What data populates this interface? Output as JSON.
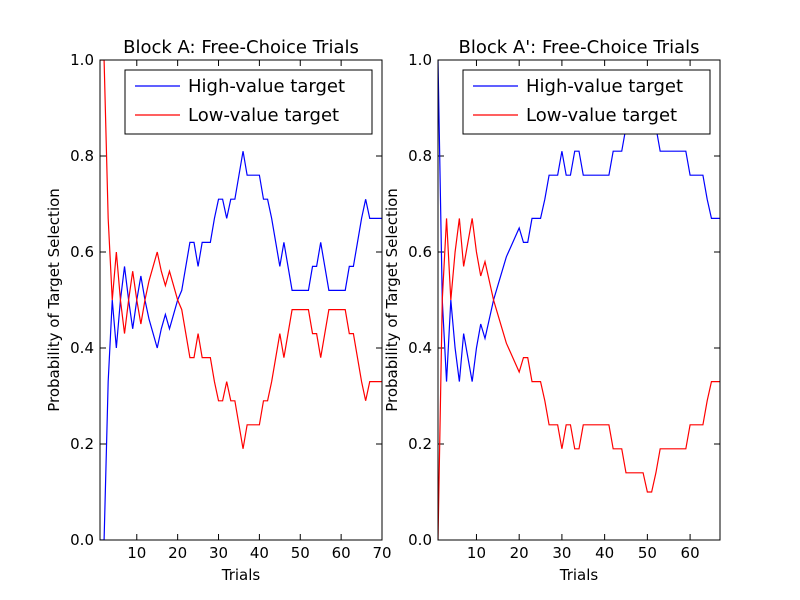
{
  "chart_data": [
    {
      "type": "line",
      "title": "Block A: Free-Choice Trials",
      "xlabel": "Trials",
      "ylabel": "Probability of Target Selection",
      "xlim": [
        1,
        70
      ],
      "ylim": [
        0.0,
        1.0
      ],
      "xticks": [
        10,
        20,
        30,
        40,
        50,
        60,
        70
      ],
      "yticks": [
        0.0,
        0.2,
        0.4,
        0.6,
        0.8,
        1.0
      ],
      "legend_position": "top-right",
      "series": [
        {
          "name": "High-value target",
          "color": "#0000ff",
          "x": [
            1,
            2,
            3,
            4,
            5,
            6,
            7,
            8,
            9,
            10,
            11,
            12,
            13,
            14,
            15,
            16,
            17,
            18,
            19,
            20,
            21,
            22,
            23,
            24,
            25,
            26,
            27,
            28,
            29,
            30,
            31,
            32,
            33,
            34,
            35,
            36,
            37,
            38,
            39,
            40,
            41,
            42,
            43,
            44,
            45,
            46,
            47,
            48,
            49,
            50,
            51,
            52,
            53,
            54,
            55,
            56,
            57,
            58,
            59,
            60,
            61,
            62,
            63,
            64,
            65,
            66,
            67,
            68,
            69,
            70
          ],
          "y": [
            0.0,
            0.0,
            0.33,
            0.5,
            0.4,
            0.5,
            0.57,
            0.5,
            0.44,
            0.5,
            0.55,
            0.5,
            0.46,
            0.43,
            0.4,
            0.44,
            0.47,
            0.44,
            0.47,
            0.5,
            0.52,
            0.57,
            0.62,
            0.62,
            0.57,
            0.62,
            0.62,
            0.62,
            0.67,
            0.71,
            0.71,
            0.67,
            0.71,
            0.71,
            0.76,
            0.81,
            0.76,
            0.76,
            0.76,
            0.76,
            0.71,
            0.71,
            0.67,
            0.62,
            0.57,
            0.62,
            0.57,
            0.52,
            0.52,
            0.52,
            0.52,
            0.52,
            0.57,
            0.57,
            0.62,
            0.57,
            0.52,
            0.52,
            0.52,
            0.52,
            0.52,
            0.57,
            0.57,
            0.62,
            0.67,
            0.71,
            0.67,
            0.67,
            0.67,
            0.67
          ]
        },
        {
          "name": "Low-value target",
          "color": "#ff0000",
          "x": [
            1,
            2,
            3,
            4,
            5,
            6,
            7,
            8,
            9,
            10,
            11,
            12,
            13,
            14,
            15,
            16,
            17,
            18,
            19,
            20,
            21,
            22,
            23,
            24,
            25,
            26,
            27,
            28,
            29,
            30,
            31,
            32,
            33,
            34,
            35,
            36,
            37,
            38,
            39,
            40,
            41,
            42,
            43,
            44,
            45,
            46,
            47,
            48,
            49,
            50,
            51,
            52,
            53,
            54,
            55,
            56,
            57,
            58,
            59,
            60,
            61,
            62,
            63,
            64,
            65,
            66,
            67,
            68,
            69,
            70
          ],
          "y": [
            1.0,
            1.0,
            0.67,
            0.5,
            0.6,
            0.5,
            0.43,
            0.5,
            0.56,
            0.5,
            0.45,
            0.5,
            0.54,
            0.57,
            0.6,
            0.56,
            0.53,
            0.56,
            0.53,
            0.5,
            0.48,
            0.43,
            0.38,
            0.38,
            0.43,
            0.38,
            0.38,
            0.38,
            0.33,
            0.29,
            0.29,
            0.33,
            0.29,
            0.29,
            0.24,
            0.19,
            0.24,
            0.24,
            0.24,
            0.24,
            0.29,
            0.29,
            0.33,
            0.38,
            0.43,
            0.38,
            0.43,
            0.48,
            0.48,
            0.48,
            0.48,
            0.48,
            0.43,
            0.43,
            0.38,
            0.43,
            0.48,
            0.48,
            0.48,
            0.48,
            0.48,
            0.43,
            0.43,
            0.38,
            0.33,
            0.29,
            0.33,
            0.33,
            0.33,
            0.33
          ]
        }
      ]
    },
    {
      "type": "line",
      "title": "Block A': Free-Choice Trials",
      "xlabel": "Trials",
      "ylabel": "Probability of Target Selection",
      "xlim": [
        1,
        67
      ],
      "ylim": [
        0.0,
        1.0
      ],
      "xticks": [
        10,
        20,
        30,
        40,
        50,
        60
      ],
      "yticks": [
        0.0,
        0.2,
        0.4,
        0.6,
        0.8,
        1.0
      ],
      "legend_position": "top-right",
      "series": [
        {
          "name": "High-value target",
          "color": "#0000ff",
          "x": [
            1,
            2,
            3,
            4,
            5,
            6,
            7,
            8,
            9,
            10,
            11,
            12,
            13,
            14,
            15,
            16,
            17,
            18,
            19,
            20,
            21,
            22,
            23,
            24,
            25,
            26,
            27,
            28,
            29,
            30,
            31,
            32,
            33,
            34,
            35,
            36,
            37,
            38,
            39,
            40,
            41,
            42,
            43,
            44,
            45,
            46,
            47,
            48,
            49,
            50,
            51,
            52,
            53,
            54,
            55,
            56,
            57,
            58,
            59,
            60,
            61,
            62,
            63,
            64,
            65,
            66,
            67
          ],
          "y": [
            1.0,
            0.5,
            0.33,
            0.5,
            0.4,
            0.33,
            0.43,
            0.38,
            0.33,
            0.4,
            0.45,
            0.42,
            0.46,
            0.5,
            0.53,
            0.56,
            0.59,
            0.61,
            0.63,
            0.65,
            0.62,
            0.62,
            0.67,
            0.67,
            0.67,
            0.71,
            0.76,
            0.76,
            0.76,
            0.81,
            0.76,
            0.76,
            0.81,
            0.81,
            0.76,
            0.76,
            0.76,
            0.76,
            0.76,
            0.76,
            0.76,
            0.81,
            0.81,
            0.81,
            0.86,
            0.86,
            0.86,
            0.86,
            0.86,
            0.9,
            0.9,
            0.86,
            0.81,
            0.81,
            0.81,
            0.81,
            0.81,
            0.81,
            0.81,
            0.76,
            0.76,
            0.76,
            0.76,
            0.71,
            0.67,
            0.67,
            0.67
          ]
        },
        {
          "name": "Low-value target",
          "color": "#ff0000",
          "x": [
            1,
            2,
            3,
            4,
            5,
            6,
            7,
            8,
            9,
            10,
            11,
            12,
            13,
            14,
            15,
            16,
            17,
            18,
            19,
            20,
            21,
            22,
            23,
            24,
            25,
            26,
            27,
            28,
            29,
            30,
            31,
            32,
            33,
            34,
            35,
            36,
            37,
            38,
            39,
            40,
            41,
            42,
            43,
            44,
            45,
            46,
            47,
            48,
            49,
            50,
            51,
            52,
            53,
            54,
            55,
            56,
            57,
            58,
            59,
            60,
            61,
            62,
            63,
            64,
            65,
            66,
            67
          ],
          "y": [
            0.0,
            0.5,
            0.67,
            0.5,
            0.6,
            0.67,
            0.57,
            0.62,
            0.67,
            0.6,
            0.55,
            0.58,
            0.54,
            0.5,
            0.47,
            0.44,
            0.41,
            0.39,
            0.37,
            0.35,
            0.38,
            0.38,
            0.33,
            0.33,
            0.33,
            0.29,
            0.24,
            0.24,
            0.24,
            0.19,
            0.24,
            0.24,
            0.19,
            0.19,
            0.24,
            0.24,
            0.24,
            0.24,
            0.24,
            0.24,
            0.24,
            0.19,
            0.19,
            0.19,
            0.14,
            0.14,
            0.14,
            0.14,
            0.14,
            0.1,
            0.1,
            0.14,
            0.19,
            0.19,
            0.19,
            0.19,
            0.19,
            0.19,
            0.19,
            0.24,
            0.24,
            0.24,
            0.24,
            0.29,
            0.33,
            0.33,
            0.33
          ]
        }
      ]
    }
  ]
}
